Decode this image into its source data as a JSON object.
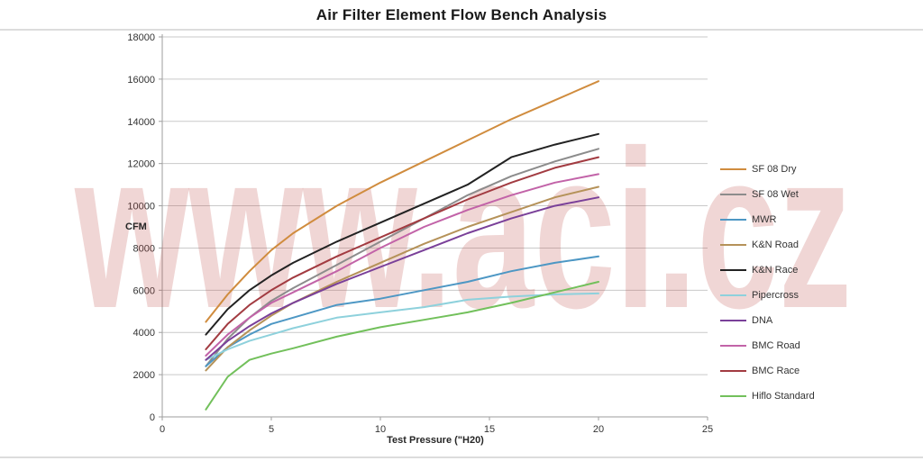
{
  "title": "Air Filter Element Flow Bench Analysis",
  "watermark": {
    "text": "www.aci.cz",
    "color": "#B94641"
  },
  "axes": {
    "x_label": "Test Pressure (\"H20)",
    "y_label": "CFM"
  },
  "chart_data": {
    "type": "line",
    "title": "Air Filter Element Flow Bench Analysis",
    "xlabel": "Test Pressure (\"H20)",
    "ylabel": "CFM",
    "xlim": [
      0,
      25
    ],
    "ylim": [
      0,
      18000
    ],
    "xticks": [
      0,
      5,
      10,
      15,
      20,
      25
    ],
    "yticks": [
      0,
      2000,
      4000,
      6000,
      8000,
      10000,
      12000,
      14000,
      16000,
      18000
    ],
    "grid": true,
    "legend_position": "right",
    "x": [
      2,
      3,
      4,
      5,
      6,
      8,
      10,
      12,
      14,
      16,
      18,
      20
    ],
    "series": [
      {
        "name": "SF 08 Dry",
        "color": "#D08C3E",
        "values": [
          4500,
          5800,
          6900,
          7900,
          8700,
          10000,
          11100,
          12100,
          13100,
          14100,
          15000,
          15900
        ]
      },
      {
        "name": "SF 08 Wet",
        "color": "#8C8C8C",
        "values": [
          2400,
          3700,
          4700,
          5500,
          6100,
          7200,
          8300,
          9400,
          10500,
          11400,
          12100,
          12700
        ]
      },
      {
        "name": "MWR",
        "color": "#4D97C4",
        "values": [
          2400,
          3300,
          3900,
          4400,
          4700,
          5300,
          5600,
          6000,
          6400,
          6900,
          7300,
          7600
        ]
      },
      {
        "name": "K&N Road",
        "color": "#B59259",
        "values": [
          2200,
          3300,
          4100,
          4800,
          5400,
          6400,
          7300,
          8200,
          9000,
          9700,
          10400,
          10900
        ]
      },
      {
        "name": "K&N Race",
        "color": "#222222",
        "values": [
          3900,
          5100,
          6000,
          6700,
          7300,
          8300,
          9200,
          10100,
          11000,
          12300,
          12900,
          13400
        ]
      },
      {
        "name": "Pipercross",
        "color": "#8ED1DC",
        "values": [
          2700,
          3200,
          3600,
          3900,
          4200,
          4700,
          4950,
          5200,
          5550,
          5700,
          5800,
          5850
        ]
      },
      {
        "name": "DNA",
        "color": "#7A4099",
        "values": [
          2700,
          3600,
          4300,
          4900,
          5400,
          6300,
          7100,
          7900,
          8700,
          9400,
          10000,
          10400
        ]
      },
      {
        "name": "BMC Road",
        "color": "#C263A8",
        "values": [
          2900,
          3900,
          4700,
          5400,
          5900,
          6900,
          8000,
          9000,
          9800,
          10500,
          11100,
          11500
        ]
      },
      {
        "name": "BMC Race",
        "color": "#A23B41",
        "values": [
          3200,
          4400,
          5300,
          6000,
          6600,
          7600,
          8500,
          9400,
          10300,
          11100,
          11800,
          12300
        ]
      },
      {
        "name": "Hiflo Standard",
        "color": "#72C05B",
        "values": [
          350,
          1900,
          2700,
          3000,
          3250,
          3800,
          4250,
          4600,
          4950,
          5400,
          5900,
          6400
        ]
      }
    ]
  }
}
